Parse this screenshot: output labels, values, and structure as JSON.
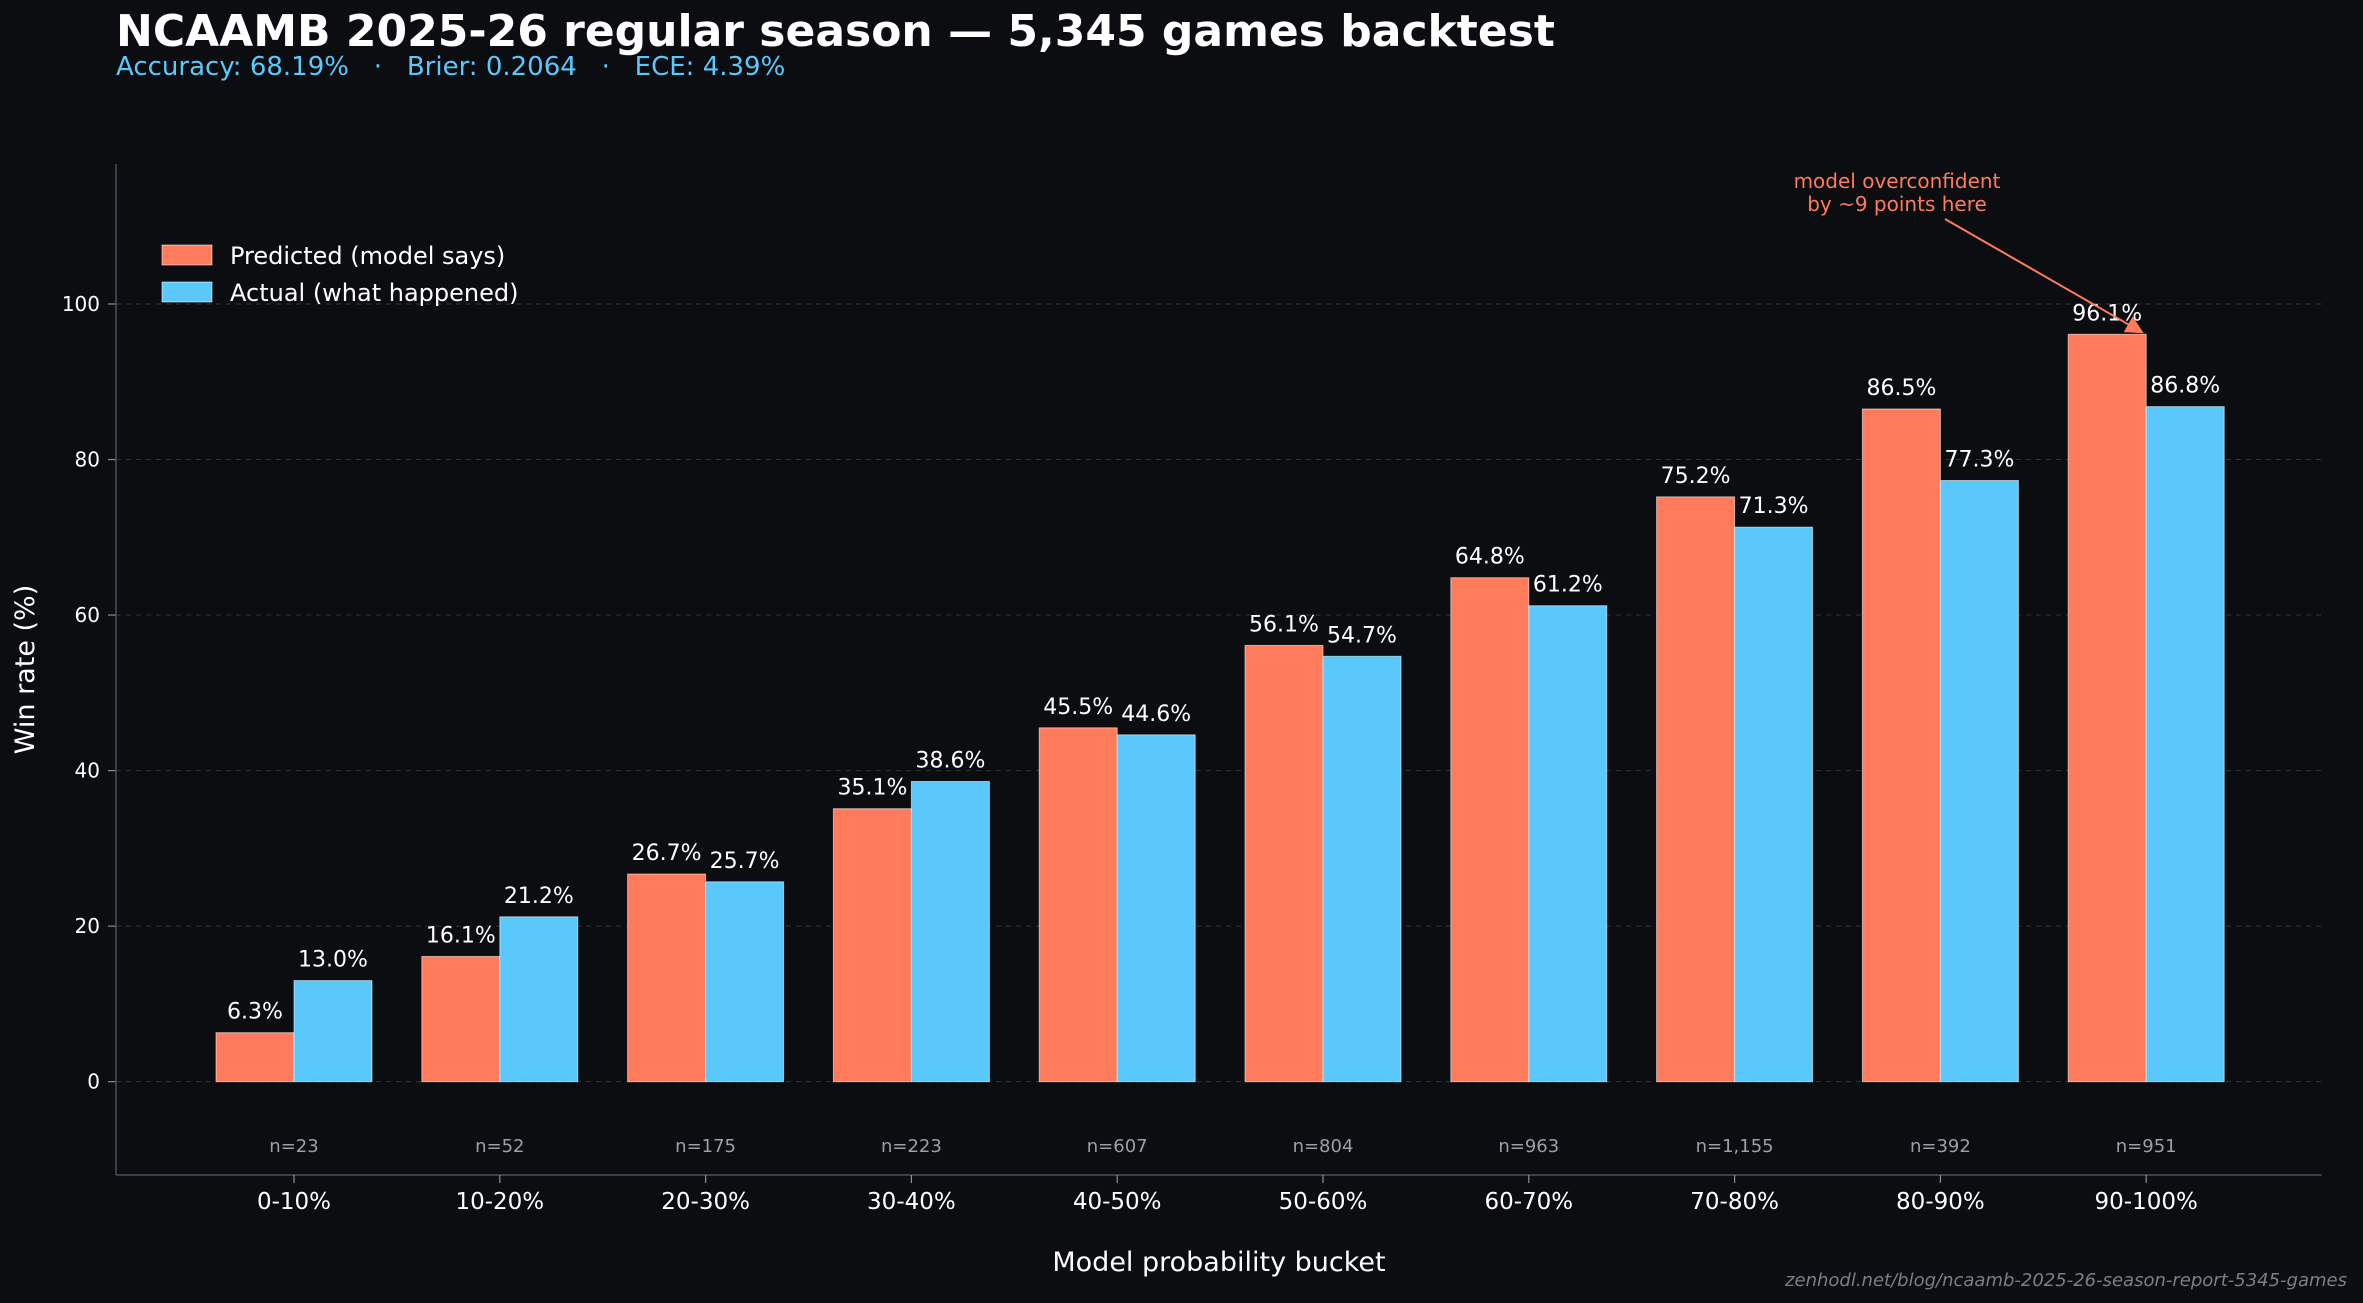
{
  "header": {
    "title": "NCAAMB 2025-26 regular season — 5,345 games backtest",
    "subtitle": "Accuracy: 68.19%   ·   Brier: 0.2064   ·   ECE: 4.39%"
  },
  "footer": {
    "source": "zenhodl.net/blog/ncaamb-2025-26-season-report-5345-games"
  },
  "colors": {
    "background": "#0b0d11",
    "predicted": "#ff7b5b",
    "actual": "#5bc8fb",
    "annotation": "#ff7b5b",
    "grid": "#3a3f47",
    "sample_text": "#9aa0a8"
  },
  "chart_data": {
    "type": "bar",
    "title": "NCAAMB 2025-26 regular season — 5,345 games backtest",
    "xlabel": "Model probability bucket",
    "ylabel": "Win rate (%)",
    "categories": [
      "0-10%",
      "10-20%",
      "20-30%",
      "30-40%",
      "40-50%",
      "50-60%",
      "60-70%",
      "70-80%",
      "80-90%",
      "90-100%"
    ],
    "series": [
      {
        "name": "Predicted (model says)",
        "values": [
          6.3,
          16.1,
          26.7,
          35.1,
          45.5,
          56.1,
          64.8,
          75.2,
          86.5,
          96.1
        ],
        "labels": [
          "6.3%",
          "16.1%",
          "26.7%",
          "35.1%",
          "45.5%",
          "56.1%",
          "64.8%",
          "75.2%",
          "86.5%",
          "96.1%"
        ]
      },
      {
        "name": "Actual (what happened)",
        "values": [
          13.0,
          21.2,
          25.7,
          38.6,
          44.6,
          54.7,
          61.2,
          71.3,
          77.3,
          86.8
        ],
        "labels": [
          "13.0%",
          "21.2%",
          "25.7%",
          "38.6%",
          "44.6%",
          "54.7%",
          "61.2%",
          "71.3%",
          "77.3%",
          "86.8%"
        ]
      }
    ],
    "sample_sizes": [
      "n=23",
      "n=52",
      "n=175",
      "n=223",
      "n=607",
      "n=804",
      "n=963",
      "n=1,155",
      "n=392",
      "n=951"
    ],
    "yticks": [
      "0",
      "20",
      "40",
      "60",
      "80",
      "100"
    ],
    "ytick_values": [
      0,
      20,
      40,
      60,
      80,
      100
    ],
    "ylim": [
      -12,
      118
    ],
    "grid": true,
    "legend_position": "top-left",
    "annotation": {
      "text_lines": [
        "model overconfident",
        "by ~9 points here"
      ],
      "target_category": "90-100%",
      "target_value": 96.1
    }
  }
}
